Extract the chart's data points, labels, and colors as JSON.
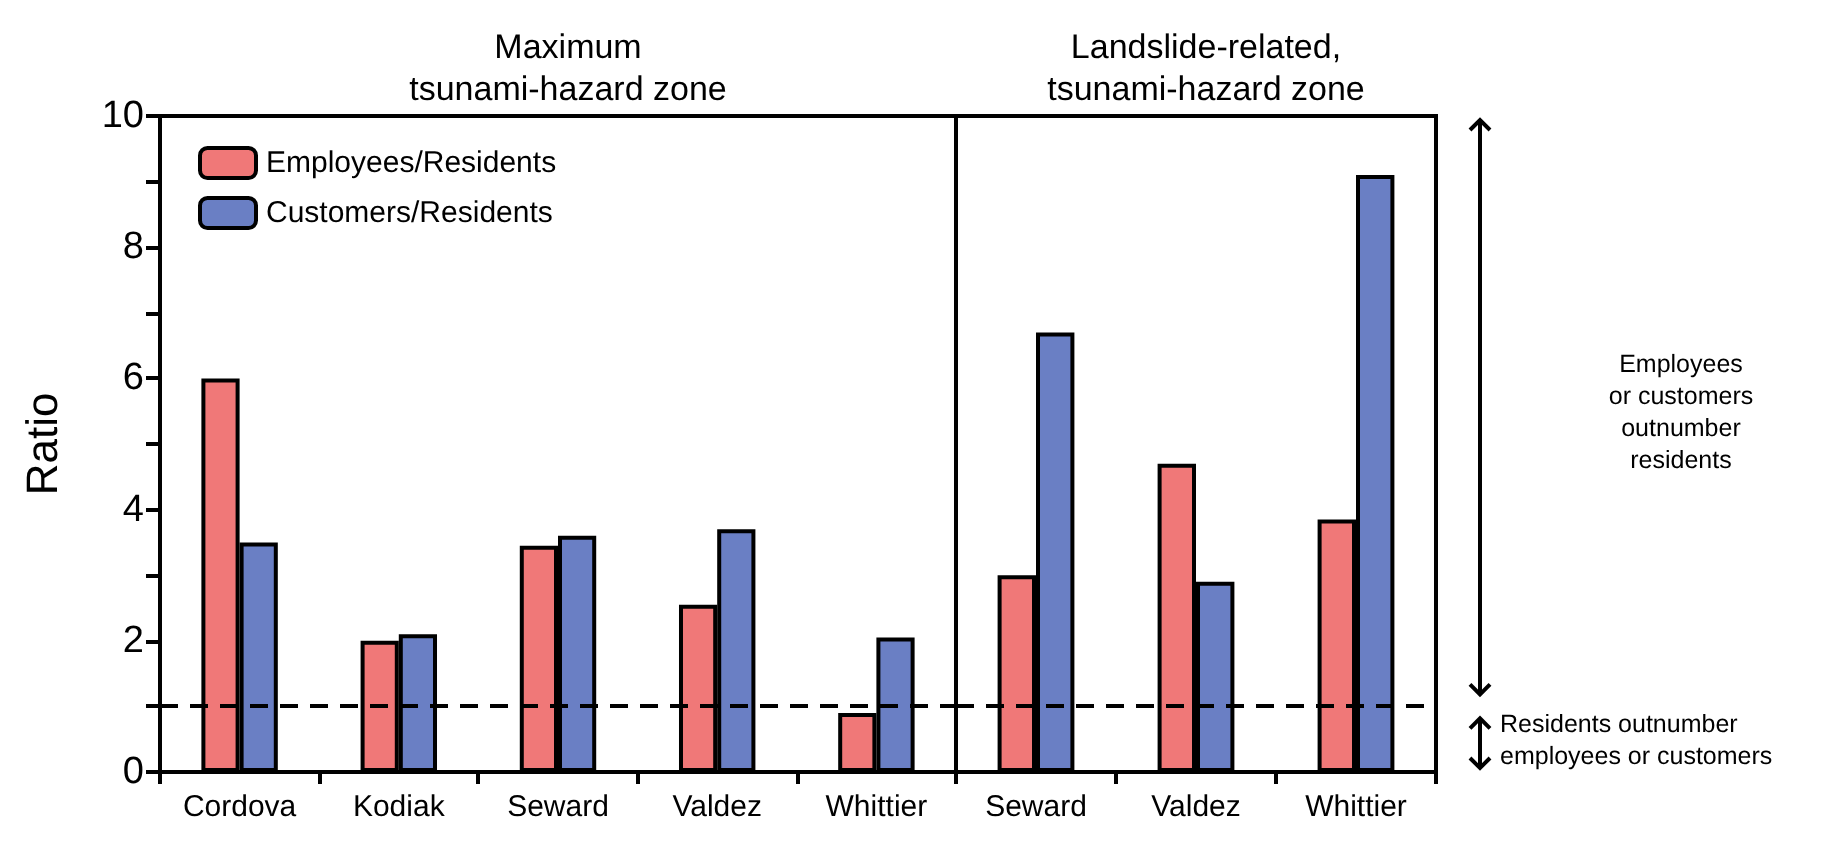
{
  "chart_data": [
    {
      "type": "bar",
      "title": "Maximum\ntsunami-hazard zone",
      "ylabel": "Ratio",
      "categories": [
        "Cordova",
        "Kodiak",
        "Seward",
        "Valdez",
        "Whittier"
      ],
      "series": [
        {
          "name": "Employees/Residents",
          "color": "#f07878",
          "values": [
            6.0,
            2.0,
            3.45,
            2.55,
            0.9
          ]
        },
        {
          "name": "Customers/Residents",
          "color": "#6a7fc4",
          "values": [
            3.5,
            2.1,
            3.6,
            3.7,
            2.05
          ]
        }
      ],
      "ylim": [
        0,
        10
      ],
      "yticks": [
        0,
        {
          "value": 1,
          "label": null
        },
        2,
        {
          "value": 3,
          "label": null
        },
        4,
        {
          "value": 5,
          "label": null
        },
        6,
        {
          "value": 7,
          "label": null
        },
        8,
        {
          "value": 9,
          "label": null
        },
        10
      ],
      "ref_lines": [
        {
          "axis": "y",
          "value": 1,
          "line_style": "dashed",
          "color": "#000000"
        }
      ],
      "legend": "top left",
      "grid": false
    },
    {
      "type": "bar",
      "title": "Landslide-related,\ntsunami-hazard zone",
      "categories": [
        "Seward",
        "Valdez",
        "Whittier"
      ],
      "series": [
        {
          "color": "#f07878",
          "values": [
            3.0,
            4.7,
            3.85
          ]
        },
        {
          "color": "#6a7fc4",
          "values": [
            6.7,
            2.9,
            9.1
          ]
        }
      ],
      "ylim": [
        0,
        10
      ],
      "tick_labels": "x",
      "ref_lines": [
        {
          "axis": "y",
          "value": 1,
          "line_style": "dashed",
          "color": "#000000"
        }
      ],
      "annotations": [
        "Employees\nor customers\noutnumber\nresidents",
        "Residents outnumber\nemployees or customers"
      ],
      "legend": false,
      "grid": false
    }
  ]
}
